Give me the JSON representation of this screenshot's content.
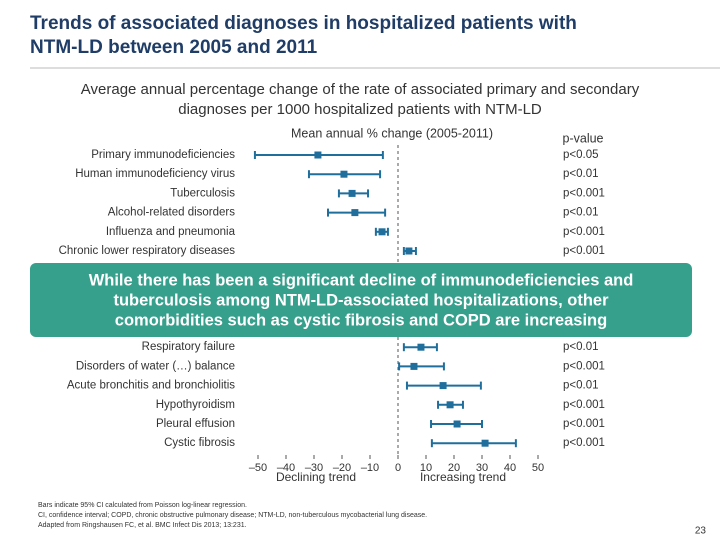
{
  "chart_data": {
    "type": "forest",
    "title": [
      "Trends of associated diagnoses in hospitalized patients with",
      "NTM-LD between 2005 and 2011"
    ],
    "subtitle": [
      "Average annual percentage change of the rate of associated primary and secondary",
      "diagnoses per 1000 hospitalized patients with NTM-LD"
    ],
    "x_label": "Mean annual % change (2005-2011)",
    "pvalue_header": "p-value",
    "categories": [
      "Primary immunodeficiencies",
      "Human immunodeficiency virus",
      "Tuberculosis",
      "Alcohol-related disorders",
      "Influenza and pneumonia",
      "Chronic lower respiratory diseases",
      "Respiratory failure",
      "Disorders of water (…) balance",
      "Acute bronchitis and bronchiolitis",
      "Hypothyroidism",
      "Pleural effusion",
      "Cystic fibrosis"
    ],
    "values": [
      -28.6,
      -19.3,
      -16.4,
      -15.4,
      -5.7,
      3.9,
      8.2,
      5.7,
      16.1,
      18.6,
      21.1,
      31.1
    ],
    "lower": [
      -51.1,
      -31.8,
      -21.1,
      -25,
      -7.9,
      2.1,
      2.1,
      0.4,
      3.2,
      14.3,
      11.8,
      12.1
    ],
    "upper": [
      -5.4,
      -6.4,
      -10.7,
      -4.6,
      -3.6,
      6.4,
      13.9,
      16.4,
      29.6,
      23.2,
      30,
      42.1
    ],
    "pvalues": [
      "p<0.05",
      "p<0.01",
      "p<0.001",
      "p<0.01",
      "p<0.001",
      "p<0.001",
      "p<0.01",
      "p<0.001",
      "p<0.01",
      "p<0.001",
      "p<0.001",
      "p<0.001"
    ],
    "color": "#1f6e9c",
    "xlim": [
      -50,
      50
    ],
    "xticks": [
      {
        "value": -50,
        "label": "–50"
      },
      {
        "value": -40,
        "label": "–40"
      },
      {
        "value": -30,
        "label": "–30"
      },
      {
        "value": -20,
        "label": "–20"
      },
      {
        "value": -10,
        "label": "–10"
      },
      0,
      10,
      20,
      30,
      40,
      50
    ],
    "left_annotation": "Declining trend",
    "right_annotation": "Increasing trend",
    "banner": [
      "While there has been a significant decline of immunodeficiencies and",
      "tuberculosis among NTM-LD-associated hospitalizations, other",
      "comorbidities such as cystic fibrosis and COPD are increasing"
    ],
    "footnotes": [
      "Bars indicate 95% CI calculated from Poisson log-linear regression.",
      "CI, confidence interval; COPD, chronic obstructive pulmonary disease; NTM-LD, non-tuberculous mycobacterial lung disease.",
      "Adapted from Ringshausen FC, et al. BMC Infect Dis 2013; 13:231."
    ],
    "page_number": "23"
  }
}
